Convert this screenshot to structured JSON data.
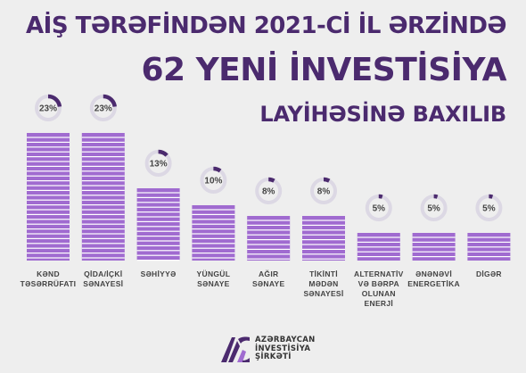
{
  "title": {
    "line1": "AİŞ TƏRƏFİNDƏN 2021-Cİ İL ƏRZİNDƏ",
    "line2": "62 YENİ İNVESTİSİYA",
    "line3": "LAYİHƏSİNƏ BAXILIB"
  },
  "chart_data": {
    "type": "bar",
    "categories": [
      [
        "KƏND",
        "TƏSƏRRÜFATI"
      ],
      [
        "QİDA/İÇKİ",
        "SƏNAYESİ"
      ],
      [
        "SƏHİYYƏ"
      ],
      [
        "YÜNGÜL",
        "SƏNAYE"
      ],
      [
        "AĞIR",
        "SƏNAYE"
      ],
      [
        "TİKİNTİ",
        "MƏDƏN",
        "SƏNAYESİ"
      ],
      [
        "ALTERNATİV",
        "VƏ BƏRPA",
        "OLUNAN",
        "ENERJİ"
      ],
      [
        "ƏNƏNƏVİ",
        "ENERGETİKA"
      ],
      [
        "DİGƏR"
      ]
    ],
    "values": [
      23,
      23,
      13,
      10,
      8,
      8,
      5,
      5,
      5
    ],
    "labels": [
      "23%",
      "23%",
      "13%",
      "10%",
      "8%",
      "8%",
      "5%",
      "5%",
      "5%"
    ],
    "ylim": [
      0,
      25
    ],
    "colors": {
      "bar": "#a06bd0",
      "stripe": "#ffffff",
      "ring_track": "#dcd8e4",
      "ring_fill": "#4b2a6e",
      "label": "#444444",
      "title": "#4b2a6e"
    }
  },
  "logo": {
    "line1": "AZƏRBAYCAN",
    "line2": "İNVESTİSİYA",
    "line3": "ŞİRKƏTİ"
  }
}
